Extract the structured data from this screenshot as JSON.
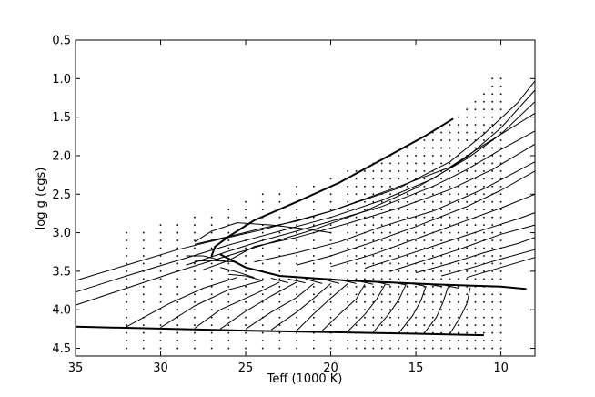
{
  "chart_data": {
    "type": "line",
    "xlabel": "Teff (1000 K)",
    "ylabel": "log g (cgs)",
    "xlim": [
      35,
      8
    ],
    "ylim": [
      4.6,
      0.5
    ],
    "x_inverted": true,
    "y_inverted": true,
    "xticks": [
      35,
      30,
      25,
      20,
      15,
      10
    ],
    "yticks": [
      0.5,
      1.0,
      1.5,
      2.0,
      2.5,
      3.0,
      3.5,
      4.0,
      4.5
    ],
    "xtick_labels": [
      "35",
      "30",
      "25",
      "20",
      "15",
      "10"
    ],
    "ytick_labels": [
      "0.5",
      "1.0",
      "1.5",
      "2.0",
      "2.5",
      "3.0",
      "3.5",
      "4.0",
      "4.5"
    ],
    "grid": false,
    "thick_lines": [
      {
        "points": [
          [
            35.0,
            4.22
          ],
          [
            25.0,
            4.27
          ],
          [
            15.0,
            4.31
          ],
          [
            11.0,
            4.33
          ]
        ]
      },
      {
        "points": [
          [
            26.5,
            3.28
          ],
          [
            25.0,
            3.45
          ],
          [
            23.0,
            3.56
          ],
          [
            19.0,
            3.62
          ],
          [
            14.0,
            3.67
          ],
          [
            10.0,
            3.7
          ],
          [
            8.5,
            3.73
          ]
        ]
      },
      {
        "points": [
          [
            27.0,
            3.3
          ],
          [
            26.8,
            3.18
          ],
          [
            26.0,
            3.05
          ],
          [
            24.5,
            2.84
          ],
          [
            22.0,
            2.6
          ],
          [
            19.5,
            2.35
          ],
          [
            17.0,
            2.05
          ],
          [
            14.5,
            1.75
          ],
          [
            12.8,
            1.52
          ]
        ]
      }
    ],
    "tracks": [
      {
        "points": [
          [
            35.0,
            3.62
          ],
          [
            32.0,
            3.42
          ],
          [
            29.0,
            3.22
          ],
          [
            27.0,
            3.11
          ],
          [
            24.0,
            2.96
          ],
          [
            20.0,
            2.72
          ],
          [
            16.0,
            2.42
          ],
          [
            13.0,
            2.08
          ],
          [
            11.0,
            1.72
          ],
          [
            9.0,
            1.31
          ],
          [
            8.0,
            1.03
          ]
        ]
      },
      {
        "points": [
          [
            35.0,
            3.77
          ],
          [
            32.0,
            3.56
          ],
          [
            29.0,
            3.36
          ],
          [
            26.0,
            3.16
          ],
          [
            23.0,
            2.98
          ],
          [
            20.0,
            2.8
          ],
          [
            17.0,
            2.58
          ],
          [
            14.0,
            2.3
          ],
          [
            12.0,
            2.02
          ],
          [
            10.0,
            1.64
          ],
          [
            8.0,
            1.15
          ]
        ]
      },
      {
        "points": [
          [
            35.0,
            3.94
          ],
          [
            32.0,
            3.72
          ],
          [
            29.0,
            3.5
          ],
          [
            26.5,
            3.33
          ],
          [
            24.0,
            3.16
          ],
          [
            21.0,
            2.96
          ],
          [
            18.0,
            2.72
          ],
          [
            15.0,
            2.42
          ],
          [
            12.0,
            2.04
          ],
          [
            10.0,
            1.72
          ],
          [
            8.0,
            1.3
          ]
        ]
      },
      {
        "points": [
          [
            28.0,
            3.15
          ],
          [
            26.0,
            3.05
          ],
          [
            24.0,
            2.94
          ],
          [
            22.0,
            2.85
          ],
          [
            20.0,
            2.72
          ],
          [
            18.0,
            2.56
          ],
          [
            16.0,
            2.4
          ],
          [
            13.0,
            2.15
          ],
          [
            11.0,
            1.86
          ],
          [
            8.0,
            1.45
          ]
        ]
      },
      {
        "points": [
          [
            28.5,
            3.42
          ],
          [
            26.0,
            3.24
          ],
          [
            24.0,
            3.1
          ],
          [
            22.0,
            2.98
          ],
          [
            19.5,
            2.82
          ],
          [
            17.0,
            2.66
          ],
          [
            14.0,
            2.4
          ],
          [
            12.0,
            2.18
          ],
          [
            10.0,
            1.92
          ],
          [
            8.0,
            1.68
          ]
        ]
      },
      {
        "points": [
          [
            27.5,
            3.48
          ],
          [
            26.0,
            3.36
          ],
          [
            24.5,
            3.18
          ],
          [
            22.0,
            3.06
          ],
          [
            19.0,
            2.88
          ],
          [
            16.0,
            2.68
          ],
          [
            13.0,
            2.44
          ],
          [
            10.5,
            2.18
          ],
          [
            8.0,
            1.85
          ]
        ]
      },
      {
        "points": [
          [
            24.5,
            3.38
          ],
          [
            22.0,
            3.26
          ],
          [
            19.5,
            3.12
          ],
          [
            17.0,
            2.92
          ],
          [
            14.0,
            2.72
          ],
          [
            11.0,
            2.43
          ],
          [
            8.0,
            2.08
          ]
        ]
      },
      {
        "points": [
          [
            22.0,
            3.42
          ],
          [
            20.0,
            3.3
          ],
          [
            17.5,
            3.12
          ],
          [
            15.0,
            2.92
          ],
          [
            12.0,
            2.66
          ],
          [
            10.0,
            2.45
          ],
          [
            8.0,
            2.2
          ]
        ]
      },
      {
        "points": [
          [
            20.0,
            3.44
          ],
          [
            17.5,
            3.28
          ],
          [
            15.0,
            3.08
          ],
          [
            12.5,
            2.88
          ],
          [
            10.0,
            2.68
          ],
          [
            8.0,
            2.5
          ]
        ]
      },
      {
        "points": [
          [
            18.0,
            3.46
          ],
          [
            16.0,
            3.32
          ],
          [
            13.5,
            3.14
          ],
          [
            11.0,
            2.96
          ],
          [
            9.0,
            2.82
          ],
          [
            8.0,
            2.74
          ]
        ]
      },
      {
        "points": [
          [
            16.5,
            3.5
          ],
          [
            14.5,
            3.36
          ],
          [
            12.5,
            3.22
          ],
          [
            10.0,
            3.02
          ],
          [
            8.0,
            2.9
          ]
        ]
      },
      {
        "points": [
          [
            15.0,
            3.52
          ],
          [
            13.0,
            3.4
          ],
          [
            11.0,
            3.26
          ],
          [
            9.0,
            3.14
          ],
          [
            8.0,
            3.06
          ]
        ]
      },
      {
        "points": [
          [
            13.5,
            3.56
          ],
          [
            11.5,
            3.44
          ],
          [
            10.0,
            3.34
          ],
          [
            8.0,
            3.22
          ]
        ]
      },
      {
        "points": [
          [
            12.0,
            3.58
          ],
          [
            10.0,
            3.45
          ],
          [
            8.0,
            3.32
          ]
        ]
      },
      {
        "points": [
          [
            20.0,
            3.0
          ],
          [
            21.5,
            2.95
          ],
          [
            23.5,
            2.9
          ],
          [
            25.5,
            2.87
          ],
          [
            27.0,
            2.98
          ],
          [
            28.0,
            3.12
          ]
        ]
      },
      {
        "points": [
          [
            26.0,
            3.38
          ],
          [
            27.5,
            3.3
          ],
          [
            28.5,
            3.3
          ]
        ]
      },
      {
        "points": [
          [
            25.5,
            3.38
          ],
          [
            27.0,
            3.36
          ],
          [
            28.0,
            3.37
          ]
        ]
      },
      {
        "points": [
          [
            24.5,
            3.58
          ],
          [
            25.5,
            3.51
          ],
          [
            26.5,
            3.45
          ]
        ]
      },
      {
        "points": [
          [
            24.0,
            3.62
          ],
          [
            25.0,
            3.56
          ],
          [
            26.0,
            3.54
          ]
        ]
      },
      {
        "points": [
          [
            22.5,
            3.65
          ],
          [
            23.5,
            3.59
          ]
        ]
      },
      {
        "points": [
          [
            21.5,
            3.65
          ],
          [
            22.5,
            3.6
          ]
        ]
      },
      {
        "points": [
          [
            20.5,
            3.66
          ],
          [
            21.5,
            3.6
          ]
        ]
      },
      {
        "points": [
          [
            19.5,
            3.66
          ],
          [
            20.5,
            3.6
          ]
        ]
      },
      {
        "points": [
          [
            18.5,
            3.66
          ],
          [
            19.5,
            3.61
          ]
        ]
      },
      {
        "points": [
          [
            17.5,
            3.67
          ],
          [
            18.5,
            3.62
          ]
        ]
      },
      {
        "points": [
          [
            16.5,
            3.68
          ],
          [
            17.5,
            3.63
          ]
        ]
      },
      {
        "points": [
          [
            15.5,
            3.68
          ],
          [
            16.5,
            3.64
          ]
        ]
      },
      {
        "points": [
          [
            14.5,
            3.69
          ],
          [
            15.5,
            3.65
          ]
        ]
      },
      {
        "points": [
          [
            13.5,
            3.7
          ],
          [
            14.5,
            3.66
          ]
        ]
      },
      {
        "points": [
          [
            12.5,
            3.72
          ],
          [
            13.5,
            3.67
          ]
        ]
      },
      {
        "points": [
          [
            32.0,
            4.22
          ],
          [
            29.5,
            3.92
          ],
          [
            27.5,
            3.72
          ],
          [
            25.5,
            3.58
          ]
        ]
      },
      {
        "points": [
          [
            30.0,
            4.23
          ],
          [
            28.0,
            3.95
          ],
          [
            26.0,
            3.74
          ],
          [
            24.0,
            3.62
          ]
        ]
      },
      {
        "points": [
          [
            28.0,
            4.24
          ],
          [
            26.5,
            4.0
          ],
          [
            24.5,
            3.8
          ],
          [
            23.0,
            3.64
          ]
        ]
      },
      {
        "points": [
          [
            26.5,
            4.25
          ],
          [
            25.0,
            4.02
          ],
          [
            23.5,
            3.82
          ],
          [
            22.0,
            3.64
          ]
        ]
      },
      {
        "points": [
          [
            25.0,
            4.25
          ],
          [
            23.5,
            4.03
          ],
          [
            22.0,
            3.84
          ],
          [
            21.0,
            3.66
          ]
        ]
      },
      {
        "points": [
          [
            23.5,
            4.26
          ],
          [
            22.0,
            4.03
          ],
          [
            21.0,
            3.85
          ],
          [
            20.0,
            3.66
          ]
        ]
      },
      {
        "points": [
          [
            22.0,
            4.27
          ],
          [
            21.0,
            4.05
          ],
          [
            20.0,
            3.85
          ],
          [
            19.0,
            3.66
          ]
        ]
      },
      {
        "points": [
          [
            20.5,
            4.27
          ],
          [
            19.5,
            4.06
          ],
          [
            18.5,
            3.86
          ],
          [
            18.0,
            3.67
          ]
        ]
      },
      {
        "points": [
          [
            19.0,
            4.28
          ],
          [
            18.0,
            4.06
          ],
          [
            17.3,
            3.86
          ],
          [
            16.8,
            3.67
          ]
        ]
      },
      {
        "points": [
          [
            17.5,
            4.29
          ],
          [
            16.6,
            4.06
          ],
          [
            16.0,
            3.87
          ],
          [
            15.6,
            3.68
          ]
        ]
      },
      {
        "points": [
          [
            16.0,
            4.3
          ],
          [
            15.2,
            4.08
          ],
          [
            14.7,
            3.88
          ],
          [
            14.4,
            3.69
          ]
        ]
      },
      {
        "points": [
          [
            14.5,
            4.3
          ],
          [
            13.8,
            4.1
          ],
          [
            13.4,
            3.9
          ],
          [
            13.1,
            3.7
          ]
        ]
      },
      {
        "points": [
          [
            13.0,
            4.31
          ],
          [
            12.4,
            4.1
          ],
          [
            12.0,
            3.92
          ],
          [
            11.8,
            3.71
          ]
        ]
      }
    ],
    "grid_points": {
      "marker": "dot",
      "teff_values": [
        32,
        31,
        30,
        29,
        28,
        27,
        26,
        25,
        24,
        23,
        22,
        21,
        20,
        19,
        18.5,
        18,
        17.5,
        17,
        16.5,
        16,
        15.5,
        15,
        14.5,
        14,
        13.5,
        13,
        12.5,
        12,
        11.5,
        11,
        10.5,
        10
      ],
      "min_logg": [
        3.0,
        3.0,
        2.9,
        2.9,
        2.8,
        2.8,
        2.7,
        2.6,
        2.5,
        2.5,
        2.4,
        2.4,
        2.3,
        2.2,
        2.2,
        2.2,
        2.1,
        2.1,
        2.0,
        2.0,
        1.9,
        1.9,
        1.8,
        1.7,
        1.7,
        1.6,
        1.5,
        1.4,
        1.3,
        1.2,
        1.0,
        1.0
      ],
      "max_logg": 4.5,
      "logg_step": 0.1
    },
    "line_color": "#000000",
    "dot_color": "#000000"
  }
}
